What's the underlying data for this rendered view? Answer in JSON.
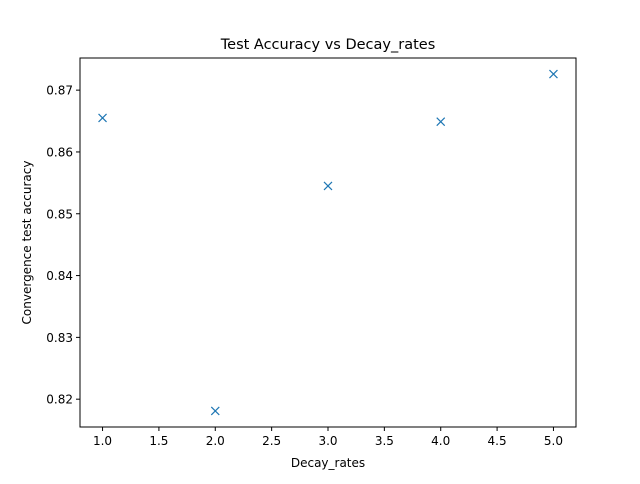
{
  "chart_data": {
    "type": "scatter",
    "title": "Test Accuracy vs Decay_rates",
    "xlabel": "Decay_rates",
    "ylabel": "Convergence test accuracy",
    "x": [
      1.0,
      2.0,
      3.0,
      4.0,
      5.0
    ],
    "y": [
      0.8655,
      0.8181,
      0.8545,
      0.8649,
      0.8726
    ],
    "marker": "x",
    "color": "#1f77b4",
    "xlim": [
      0.8,
      5.2
    ],
    "ylim": [
      0.8155,
      0.8752
    ],
    "xticks": [
      1.0,
      1.5,
      2.0,
      2.5,
      3.0,
      3.5,
      4.0,
      4.5,
      5.0
    ],
    "xtick_labels": [
      "1.0",
      "1.5",
      "2.0",
      "2.5",
      "3.0",
      "3.5",
      "4.0",
      "4.5",
      "5.0"
    ],
    "yticks": [
      0.82,
      0.83,
      0.84,
      0.85,
      0.86,
      0.87
    ],
    "ytick_labels": [
      "0.82",
      "0.83",
      "0.84",
      "0.85",
      "0.86",
      "0.87"
    ],
    "grid": false,
    "legend": "none"
  }
}
